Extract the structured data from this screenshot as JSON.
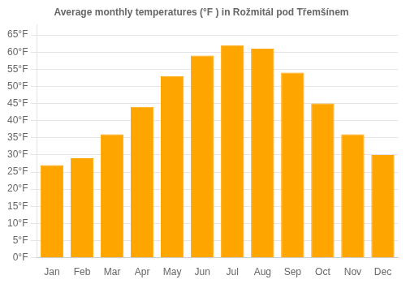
{
  "chart_data": {
    "type": "bar",
    "title": "Average monthly temperatures (°F ) in Rožmitál pod Třemšínem",
    "categories": [
      "Jan",
      "Feb",
      "Mar",
      "Apr",
      "May",
      "Jun",
      "Jul",
      "Aug",
      "Sep",
      "Oct",
      "Nov",
      "Dec"
    ],
    "values": [
      27,
      29,
      36,
      44,
      53,
      59,
      62,
      61,
      54,
      45,
      36,
      30
    ],
    "color": "#FFA500",
    "ylim": [
      0,
      68
    ],
    "yticks": [
      {
        "value": 0,
        "label": "0°F"
      },
      {
        "value": 5,
        "label": "5°F"
      },
      {
        "value": 10,
        "label": "10°F"
      },
      {
        "value": 15,
        "label": "15°F"
      },
      {
        "value": 20,
        "label": "20°F"
      },
      {
        "value": 25,
        "label": "25°F"
      },
      {
        "value": 30,
        "label": "30°F"
      },
      {
        "value": 35,
        "label": "35°F"
      },
      {
        "value": 40,
        "label": "40°F"
      },
      {
        "value": 45,
        "label": "45°F"
      },
      {
        "value": 50,
        "label": "50°F"
      },
      {
        "value": 55,
        "label": "55°F"
      },
      {
        "value": 60,
        "label": "60°F"
      },
      {
        "value": 65,
        "label": "65°F"
      }
    ],
    "grid": true
  }
}
